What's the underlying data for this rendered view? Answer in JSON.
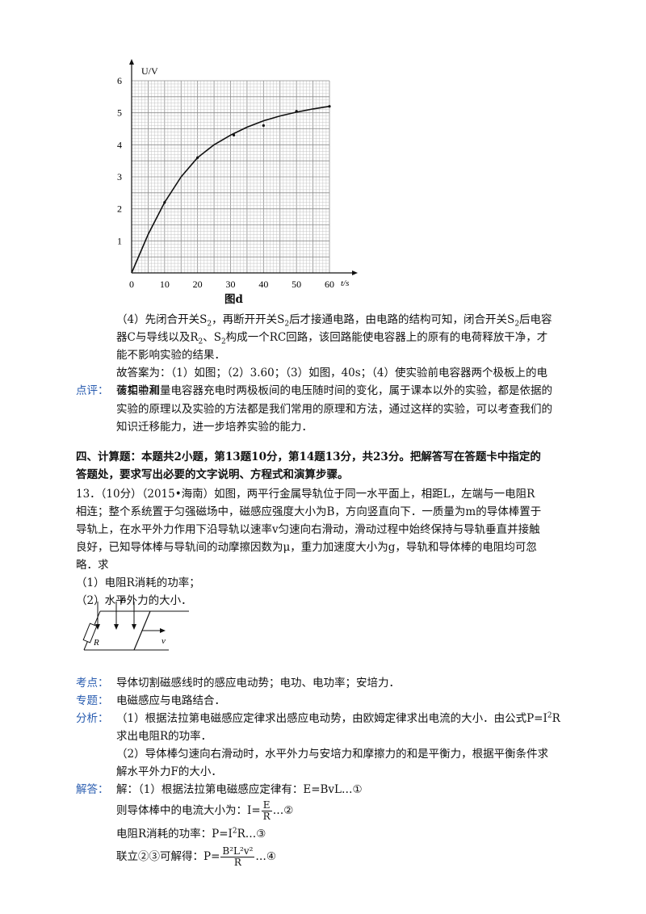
{
  "chart_data": {
    "type": "line",
    "title": "图d",
    "xlabel": "t/s",
    "ylabel": "U/V",
    "xlim": [
      0,
      60
    ],
    "ylim": [
      0,
      6
    ],
    "x_ticks": [
      "0",
      "10",
      "20",
      "30",
      "40",
      "50",
      "60"
    ],
    "y_ticks": [
      "1",
      "2",
      "3",
      "4",
      "5",
      "6"
    ],
    "grid": true,
    "series": [
      {
        "x": [
          0,
          5,
          10,
          15,
          20,
          25,
          30,
          35,
          40,
          45,
          50,
          55,
          60
        ],
        "y": [
          0,
          1.2,
          2.2,
          3.0,
          3.6,
          4.0,
          4.3,
          4.55,
          4.75,
          4.9,
          5.02,
          5.12,
          5.2
        ]
      }
    ],
    "points": [
      {
        "x": 10,
        "y": 2.2
      },
      {
        "x": 20,
        "y": 3.6
      },
      {
        "x": 31,
        "y": 4.3
      },
      {
        "x": 40,
        "y": 4.6
      },
      {
        "x": 50,
        "y": 5.05
      },
      {
        "x": 60,
        "y": 5.2
      }
    ]
  },
  "text": {
    "p4_line1_pre": "（4）先闭合开关S",
    "p4_line1_sub1": "2",
    "p4_line1_mid": "，再断开开关S",
    "p4_line1_sub2": "2",
    "p4_line1_mid2": "后才接通电路，由电路的结构可知，闭合开关S",
    "p4_line1_sub3": "2",
    "p4_line1_post": "后电容",
    "p4_line2_pre": "器C与导线以及R",
    "p4_line2_sub1": "2",
    "p4_line2_mid": "、S",
    "p4_line2_sub2": "2",
    "p4_line2_post": "构成一个RC回路，该回路能使电容器上的原有的电荷释放干净，才",
    "p4_line3": "能不影响实验的结果．",
    "ans_line1": "故答案为：（1）如图；（2）3.60；（3）如图，40s；（4）使实验前电容器两个极板上的电",
    "ans_line2": "荷相中和",
    "review_label": "点评：",
    "review_line1": "该实验测量电容器充电时两极板间的电压随时间的变化，属于课本以外的实验，都是依据的",
    "review_line2": "实验的原理以及实验的方法都是我们常用的原理和方法，通过这样的实验，可以考查我们的",
    "review_line3": "知识迁移能力，进一步培养实验的能力．",
    "section_line1": "四、计算题：本题共2小题，第13题10分，第14题13分，共23分。把解答写在答题卡中指定的",
    "section_line2": "答题处，要求写出必要的文字说明、方程式和演算步骤。",
    "q13_line1": "13．（10分）（2015•海南）如图，两平行金属导轨位于同一水平面上，相距L，左端与一电阻R",
    "q13_line2": "相连；整个系统置于匀强磁场中，磁感应强度大小为B，方向竖直向下．一质量为m的导体棒置于",
    "q13_line3": "导轨上，在水平外力作用下沿导轨以速率v匀速向右滑动，滑动过程中始终保持与导轨垂直并接触",
    "q13_line4": "良好，已知导体棒与导轨间的动摩擦因数为μ，重力加速度大小为g，导轨和导体棒的电阻均可忽",
    "q13_line5": "略．求",
    "q13_sub1": "（1）电阻R消耗的功率；",
    "q13_sub2": "（2）水平外力的大小．",
    "fig_B": "B",
    "fig_R": "R",
    "fig_v": "v",
    "kaodian_label": "考点：",
    "kaodian": "导体切割磁感线时的感应电动势；电功、电功率；安培力．",
    "zhuanti_label": "专题：",
    "zhuanti": "电磁感应与电路结合．",
    "fenxi_label": "分析：",
    "fenxi_line1_pre": "（1）根据法拉第电磁感应定律求出感应电动势，由欧姆定律求出电流的大小．由公式P=I",
    "fenxi_line1_sup": "2",
    "fenxi_line1_post": "R",
    "fenxi_line2": "求出电阻R的功率．",
    "fenxi_line3": "（2）导体棒匀速向右滑动时，水平外力与安培力和摩擦力的和是平衡力，根据平衡条件求",
    "fenxi_line4": "解水平外力F的大小．",
    "jieda_label": "解答：",
    "jieda_line1": "解：（1）根据法拉第电磁感应定律有：E=BvL…①",
    "jieda_line2_pre": "则导体棒中的电流大小为：",
    "jieda_line2_I": "I=",
    "jieda_line2_num": "E",
    "jieda_line2_den": "R",
    "jieda_line2_post": "…②",
    "jieda_line3_pre": "电阻R消耗的功率：P=I",
    "jieda_line3_sup": "2",
    "jieda_line3_post": "R…③",
    "jieda_line4_pre": "联立②③可解得：P=",
    "jieda_line4_num": "B²L²v²",
    "jieda_line4_den": "R",
    "jieda_line4_post": "…④"
  }
}
